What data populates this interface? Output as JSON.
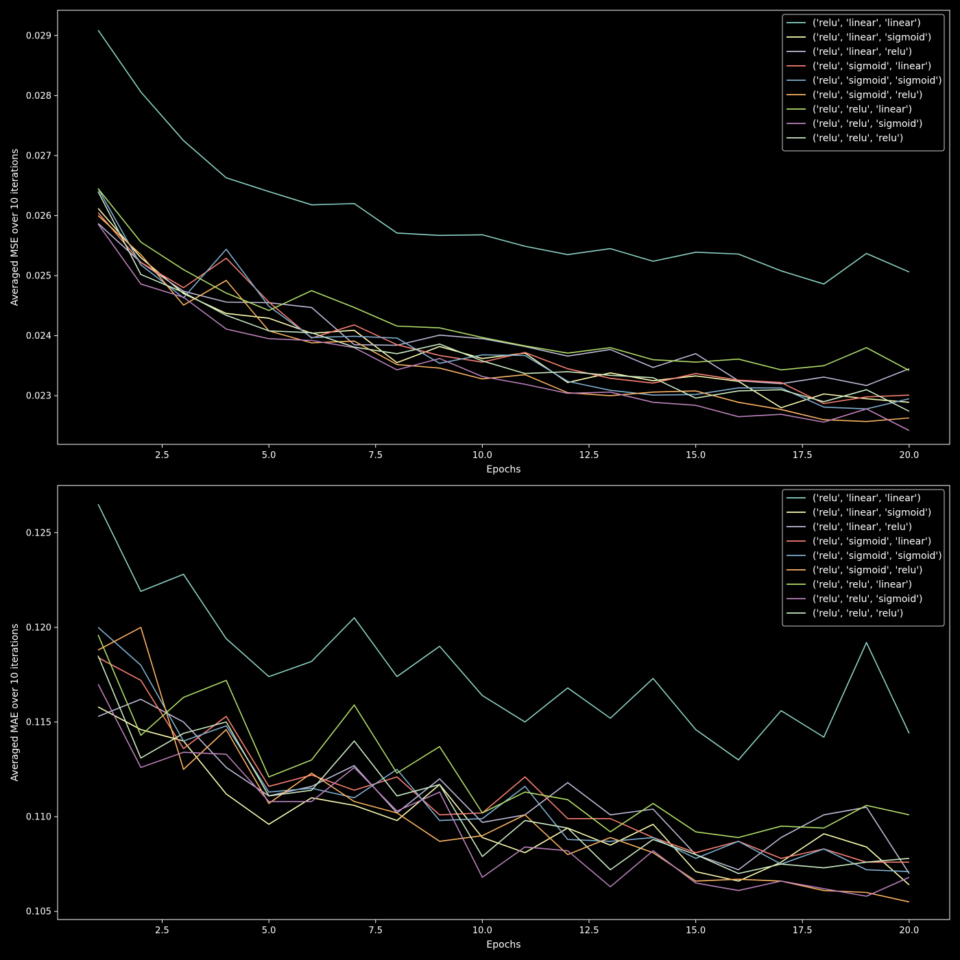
{
  "chart_data": [
    {
      "type": "line",
      "title": "",
      "xlabel": "Epochs",
      "ylabel": "Averaged MSE over 10 iterations",
      "xlim": [
        0.05,
        20.95
      ],
      "ylim": [
        0.02219,
        0.02942
      ],
      "xticks": [
        2.5,
        5.0,
        7.5,
        10.0,
        12.5,
        15.0,
        17.5,
        20.0
      ],
      "xtick_labels": [
        "2.5",
        "5.0",
        "7.5",
        "10.0",
        "12.5",
        "15.0",
        "17.5",
        "20.0"
      ],
      "yticks": [
        0.023,
        0.024,
        0.025,
        0.026,
        0.027,
        0.028,
        0.029
      ],
      "ytick_labels": [
        "0.023",
        "0.024",
        "0.025",
        "0.026",
        "0.027",
        "0.028",
        "0.029"
      ],
      "grid": false,
      "legend_position": "top-right",
      "x": [
        1,
        2,
        3,
        4,
        5,
        6,
        7,
        8,
        9,
        10,
        11,
        12,
        13,
        14,
        15,
        16,
        17,
        18,
        19,
        20
      ],
      "series": [
        {
          "name": "('relu', 'linear', 'linear')",
          "color": "#8dd3c7",
          "values": [
            0.02909,
            0.02806,
            0.02725,
            0.02663,
            0.0264,
            0.02618,
            0.0262,
            0.02571,
            0.02567,
            0.02568,
            0.02549,
            0.02535,
            0.02545,
            0.02524,
            0.02539,
            0.02536,
            0.02508,
            0.02486,
            0.02537,
            0.02506
          ]
        },
        {
          "name": "('relu', 'linear', 'sigmoid')",
          "color": "#feffb3",
          "values": [
            0.02612,
            0.0253,
            0.0247,
            0.02437,
            0.02429,
            0.02404,
            0.02409,
            0.02355,
            0.02382,
            0.02362,
            0.02371,
            0.02322,
            0.02338,
            0.02325,
            0.02333,
            0.02324,
            0.0228,
            0.02303,
            0.02295,
            0.02289
          ]
        },
        {
          "name": "('relu', 'linear', 'relu')",
          "color": "#bfbbd9",
          "values": [
            0.02587,
            0.02522,
            0.02474,
            0.02456,
            0.02455,
            0.02447,
            0.02385,
            0.02384,
            0.02401,
            0.02395,
            0.02382,
            0.02366,
            0.02377,
            0.02347,
            0.0237,
            0.02325,
            0.0232,
            0.02331,
            0.02317,
            0.02345
          ]
        },
        {
          "name": "('relu', 'sigmoid', 'linear')",
          "color": "#fa8174",
          "values": [
            0.02605,
            0.02522,
            0.0248,
            0.02529,
            0.02456,
            0.02396,
            0.02418,
            0.02385,
            0.02367,
            0.02356,
            0.02372,
            0.02345,
            0.02329,
            0.02321,
            0.02337,
            0.02326,
            0.02322,
            0.02287,
            0.02298,
            0.02301
          ]
        },
        {
          "name": "('relu', 'sigmoid', 'sigmoid')",
          "color": "#81b1d2",
          "values": [
            0.02645,
            0.02518,
            0.02463,
            0.02544,
            0.02449,
            0.02397,
            0.02399,
            0.02396,
            0.02354,
            0.02368,
            0.02367,
            0.02324,
            0.02309,
            0.02301,
            0.02302,
            0.02313,
            0.02313,
            0.02281,
            0.02278,
            0.02295
          ]
        },
        {
          "name": "('relu', 'sigmoid', 'relu')",
          "color": "#fdb462",
          "values": [
            0.026,
            0.02535,
            0.02451,
            0.02492,
            0.02408,
            0.02388,
            0.02391,
            0.02352,
            0.02346,
            0.02328,
            0.02335,
            0.02305,
            0.023,
            0.02306,
            0.02308,
            0.02289,
            0.02277,
            0.0226,
            0.02257,
            0.02263
          ]
        },
        {
          "name": "('relu', 'relu', 'linear')",
          "color": "#b3de69",
          "values": [
            0.02645,
            0.02556,
            0.0251,
            0.02471,
            0.02442,
            0.02475,
            0.02447,
            0.02416,
            0.02413,
            0.02397,
            0.02383,
            0.02371,
            0.0238,
            0.0236,
            0.02356,
            0.02361,
            0.02343,
            0.0235,
            0.0238,
            0.02342
          ]
        },
        {
          "name": "('relu', 'relu', 'sigmoid')",
          "color": "#bc82bd",
          "values": [
            0.02586,
            0.02486,
            0.02464,
            0.02411,
            0.02395,
            0.02392,
            0.0238,
            0.02343,
            0.02362,
            0.02332,
            0.02319,
            0.02304,
            0.02306,
            0.02289,
            0.02284,
            0.02265,
            0.02269,
            0.02256,
            0.02278,
            0.02242
          ]
        },
        {
          "name": "('relu', 'relu', 'relu')",
          "color": "#ccebc4",
          "values": [
            0.0264,
            0.02502,
            0.02472,
            0.02434,
            0.02408,
            0.02405,
            0.02381,
            0.0237,
            0.02386,
            0.02358,
            0.02337,
            0.0234,
            0.02334,
            0.0233,
            0.02296,
            0.02308,
            0.0231,
            0.0229,
            0.0231,
            0.02274
          ]
        }
      ]
    },
    {
      "type": "line",
      "title": "",
      "xlabel": "Epochs",
      "ylabel": "Averaged MAE over 10 iterations",
      "xlim": [
        0.05,
        20.95
      ],
      "ylim": [
        0.10457,
        0.12749
      ],
      "xticks": [
        2.5,
        5.0,
        7.5,
        10.0,
        12.5,
        15.0,
        17.5,
        20.0
      ],
      "xtick_labels": [
        "2.5",
        "5.0",
        "7.5",
        "10.0",
        "12.5",
        "15.0",
        "17.5",
        "20.0"
      ],
      "yticks": [
        0.105,
        0.11,
        0.115,
        0.12,
        0.125
      ],
      "ytick_labels": [
        "0.105",
        "0.110",
        "0.115",
        "0.120",
        "0.125"
      ],
      "grid": false,
      "legend_position": "top-right",
      "x": [
        1,
        2,
        3,
        4,
        5,
        6,
        7,
        8,
        9,
        10,
        11,
        12,
        13,
        14,
        15,
        16,
        17,
        18,
        19,
        20
      ],
      "series": [
        {
          "name": "('relu', 'linear', 'linear')",
          "color": "#8dd3c7",
          "values": [
            0.1265,
            0.1219,
            0.1228,
            0.1194,
            0.1174,
            0.1182,
            0.1205,
            0.1174,
            0.119,
            0.1164,
            0.115,
            0.1168,
            0.1152,
            0.1173,
            0.1146,
            0.113,
            0.1156,
            0.1142,
            0.1192,
            0.1144
          ]
        },
        {
          "name": "('relu', 'linear', 'sigmoid')",
          "color": "#feffb3",
          "values": [
            0.1158,
            0.1146,
            0.114,
            0.1112,
            0.1096,
            0.111,
            0.1106,
            0.1098,
            0.1117,
            0.1089,
            0.1081,
            0.1094,
            0.1085,
            0.1096,
            0.1071,
            0.1066,
            0.1076,
            0.1091,
            0.1084,
            0.1064
          ]
        },
        {
          "name": "('relu', 'linear', 'relu')",
          "color": "#bfbbd9",
          "values": [
            0.1153,
            0.1162,
            0.115,
            0.1126,
            0.1111,
            0.1116,
            0.1127,
            0.1102,
            0.112,
            0.1097,
            0.1101,
            0.1118,
            0.1101,
            0.1104,
            0.108,
            0.1072,
            0.1089,
            0.1101,
            0.1105,
            0.107
          ]
        },
        {
          "name": "('relu', 'sigmoid', 'linear')",
          "color": "#fa8174",
          "values": [
            0.1184,
            0.1172,
            0.1136,
            0.1153,
            0.1116,
            0.1122,
            0.1114,
            0.1121,
            0.1101,
            0.1102,
            0.1121,
            0.1099,
            0.1099,
            0.1089,
            0.1081,
            0.1087,
            0.1078,
            0.1083,
            0.1076,
            0.1076
          ]
        },
        {
          "name": "('relu', 'sigmoid', 'sigmoid')",
          "color": "#81b1d2",
          "values": [
            0.12,
            0.118,
            0.114,
            0.1148,
            0.1113,
            0.1115,
            0.111,
            0.1125,
            0.1098,
            0.1099,
            0.1116,
            0.1088,
            0.1087,
            0.1089,
            0.1078,
            0.1087,
            0.1075,
            0.1083,
            0.1072,
            0.1071
          ]
        },
        {
          "name": "('relu', 'sigmoid', 'relu')",
          "color": "#fdb462",
          "values": [
            0.1188,
            0.12,
            0.1125,
            0.1146,
            0.1107,
            0.1123,
            0.1108,
            0.1102,
            0.1087,
            0.109,
            0.1101,
            0.108,
            0.1089,
            0.1081,
            0.1066,
            0.1067,
            0.1066,
            0.1061,
            0.106,
            0.1055
          ]
        },
        {
          "name": "('relu', 'relu', 'linear')",
          "color": "#b3de69",
          "values": [
            0.1196,
            0.1143,
            0.1163,
            0.1172,
            0.1121,
            0.113,
            0.1159,
            0.1123,
            0.1137,
            0.1102,
            0.1113,
            0.1109,
            0.1092,
            0.1107,
            0.1092,
            0.1089,
            0.1095,
            0.1094,
            0.1106,
            0.1101
          ]
        },
        {
          "name": "('relu', 'relu', 'sigmoid')",
          "color": "#bc82bd",
          "values": [
            0.117,
            0.1126,
            0.1134,
            0.1133,
            0.1108,
            0.1108,
            0.1126,
            0.1103,
            0.1113,
            0.1068,
            0.1084,
            0.1082,
            0.1063,
            0.1082,
            0.1065,
            0.1061,
            0.1066,
            0.1062,
            0.1058,
            0.1068
          ]
        },
        {
          "name": "('relu', 'relu', 'relu')",
          "color": "#ccebc4",
          "values": [
            0.1185,
            0.1131,
            0.1144,
            0.115,
            0.1111,
            0.1114,
            0.114,
            0.1111,
            0.1117,
            0.1079,
            0.1098,
            0.1094,
            0.1072,
            0.1088,
            0.108,
            0.107,
            0.1075,
            0.1073,
            0.1076,
            0.1078
          ]
        }
      ]
    }
  ]
}
